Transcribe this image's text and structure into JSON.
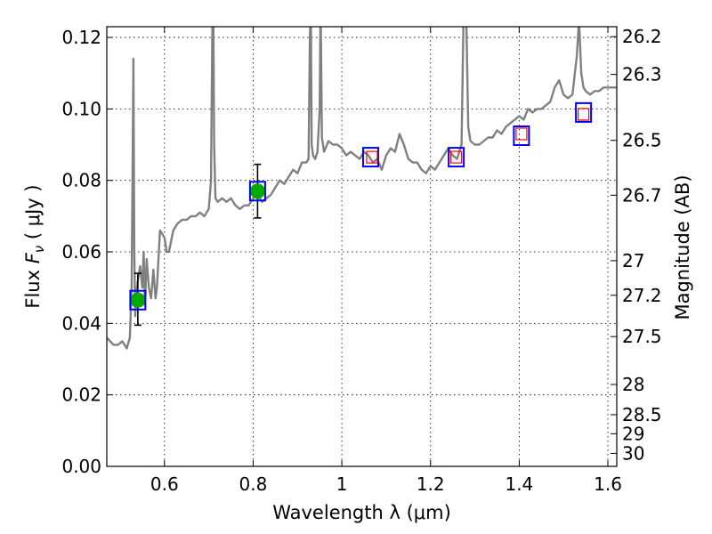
{
  "chart_data": {
    "type": "line",
    "xlabel": "Wavelength  λ (μm)",
    "ylabel": "Flux  F_ν  ( μJy )",
    "ylabel_parts": {
      "prefix": "Flux  ",
      "symbol": "F",
      "subscript": "ν",
      "unit": "  ( μJy )"
    },
    "y2label": "Magnitude (AB)",
    "xlim": [
      0.47,
      1.62
    ],
    "ylim": [
      0.0,
      0.123
    ],
    "grid": true,
    "x_ticks": [
      0.6,
      0.8,
      1.0,
      1.2,
      1.4,
      1.6
    ],
    "x_tick_labels": [
      "0.6",
      "0.8",
      "1",
      "1.2",
      "1.4",
      "1.6"
    ],
    "y_ticks": [
      0.0,
      0.02,
      0.04,
      0.06,
      0.08,
      0.1,
      0.12
    ],
    "y_tick_labels": [
      "0.00",
      "0.02",
      "0.04",
      "0.06",
      "0.08",
      "0.10",
      "0.12"
    ],
    "y2_ticks": [
      {
        "mag": 26.2,
        "label": "26.2"
      },
      {
        "mag": 26.3,
        "label": "26.3"
      },
      {
        "mag": 26.5,
        "label": "26.5"
      },
      {
        "mag": 26.7,
        "label": "26.7"
      },
      {
        "mag": 27.0,
        "label": "27"
      },
      {
        "mag": 27.2,
        "label": "27.2"
      },
      {
        "mag": 27.5,
        "label": "27.5"
      },
      {
        "mag": 28.0,
        "label": "28"
      },
      {
        "mag": 28.5,
        "label": "28.5"
      },
      {
        "mag": 29.0,
        "label": "29"
      },
      {
        "mag": 30.0,
        "label": "30"
      }
    ],
    "series": [
      {
        "style": "spectrum",
        "color": "#808080",
        "x": [
          0.47,
          0.485,
          0.495,
          0.505,
          0.515,
          0.522,
          0.526,
          0.528,
          0.53,
          0.532,
          0.534,
          0.536,
          0.54,
          0.545,
          0.55,
          0.553,
          0.556,
          0.56,
          0.565,
          0.57,
          0.575,
          0.58,
          0.583,
          0.59,
          0.6,
          0.605,
          0.61,
          0.62,
          0.63,
          0.64,
          0.65,
          0.66,
          0.67,
          0.68,
          0.69,
          0.7,
          0.705,
          0.708,
          0.71,
          0.712,
          0.715,
          0.72,
          0.73,
          0.74,
          0.75,
          0.76,
          0.77,
          0.78,
          0.79,
          0.8,
          0.81,
          0.82,
          0.83,
          0.84,
          0.85,
          0.86,
          0.87,
          0.88,
          0.89,
          0.9,
          0.91,
          0.92,
          0.925,
          0.928,
          0.93,
          0.932,
          0.935,
          0.94,
          0.945,
          0.95,
          0.952,
          0.955,
          0.96,
          0.97,
          0.98,
          0.99,
          1.0,
          1.01,
          1.02,
          1.03,
          1.04,
          1.05,
          1.06,
          1.07,
          1.08,
          1.09,
          1.1,
          1.11,
          1.12,
          1.13,
          1.14,
          1.15,
          1.16,
          1.17,
          1.18,
          1.19,
          1.2,
          1.21,
          1.22,
          1.23,
          1.24,
          1.25,
          1.26,
          1.27,
          1.275,
          1.28,
          1.285,
          1.29,
          1.3,
          1.31,
          1.32,
          1.33,
          1.34,
          1.35,
          1.36,
          1.37,
          1.38,
          1.39,
          1.4,
          1.41,
          1.42,
          1.43,
          1.44,
          1.45,
          1.46,
          1.47,
          1.48,
          1.49,
          1.5,
          1.51,
          1.52,
          1.53,
          1.535,
          1.54,
          1.545,
          1.55,
          1.56,
          1.57,
          1.58,
          1.59,
          1.6,
          1.62
        ],
        "y": [
          0.036,
          0.034,
          0.034,
          0.035,
          0.033,
          0.036,
          0.05,
          0.08,
          0.114,
          0.06,
          0.042,
          0.048,
          0.052,
          0.056,
          0.05,
          0.06,
          0.045,
          0.058,
          0.05,
          0.047,
          0.055,
          0.047,
          0.05,
          0.066,
          0.064,
          0.06,
          0.06,
          0.066,
          0.068,
          0.069,
          0.069,
          0.07,
          0.07,
          0.071,
          0.07,
          0.072,
          0.08,
          0.123,
          0.13,
          0.09,
          0.075,
          0.074,
          0.075,
          0.074,
          0.075,
          0.073,
          0.072,
          0.073,
          0.073,
          0.075,
          0.076,
          0.074,
          0.075,
          0.076,
          0.078,
          0.08,
          0.079,
          0.081,
          0.083,
          0.082,
          0.085,
          0.085,
          0.086,
          0.12,
          0.13,
          0.09,
          0.087,
          0.086,
          0.088,
          0.1,
          0.13,
          0.092,
          0.088,
          0.091,
          0.09,
          0.09,
          0.089,
          0.087,
          0.088,
          0.087,
          0.086,
          0.088,
          0.087,
          0.085,
          0.086,
          0.083,
          0.087,
          0.089,
          0.088,
          0.093,
          0.09,
          0.086,
          0.085,
          0.085,
          0.083,
          0.082,
          0.084,
          0.083,
          0.085,
          0.087,
          0.089,
          0.087,
          0.086,
          0.09,
          0.13,
          0.13,
          0.095,
          0.091,
          0.09,
          0.09,
          0.091,
          0.092,
          0.092,
          0.094,
          0.093,
          0.095,
          0.096,
          0.097,
          0.098,
          0.097,
          0.1,
          0.099,
          0.1,
          0.1,
          0.101,
          0.102,
          0.106,
          0.108,
          0.104,
          0.103,
          0.104,
          0.115,
          0.125,
          0.11,
          0.106,
          0.105,
          0.104,
          0.105,
          0.105,
          0.106,
          0.106,
          0.106
        ]
      },
      {
        "style": "filled-circle-errorbar",
        "color": "#00aa00",
        "x": [
          0.54,
          0.81
        ],
        "y": [
          0.0465,
          0.077
        ],
        "yerr_low": [
          0.0395,
          0.0695
        ],
        "yerr_high": [
          0.054,
          0.0845
        ]
      },
      {
        "style": "blue-open-square",
        "color": "#0000ff",
        "x": [
          0.54,
          0.81,
          1.065,
          1.258,
          1.405,
          1.545
        ],
        "y": [
          0.0465,
          0.077,
          0.0865,
          0.0865,
          0.0925,
          0.099
        ]
      },
      {
        "style": "red-open-square",
        "color": "#ff0000",
        "x": [
          1.068,
          1.258,
          1.405,
          1.545
        ],
        "y": [
          0.0865,
          0.0865,
          0.093,
          0.0985
        ]
      }
    ]
  }
}
